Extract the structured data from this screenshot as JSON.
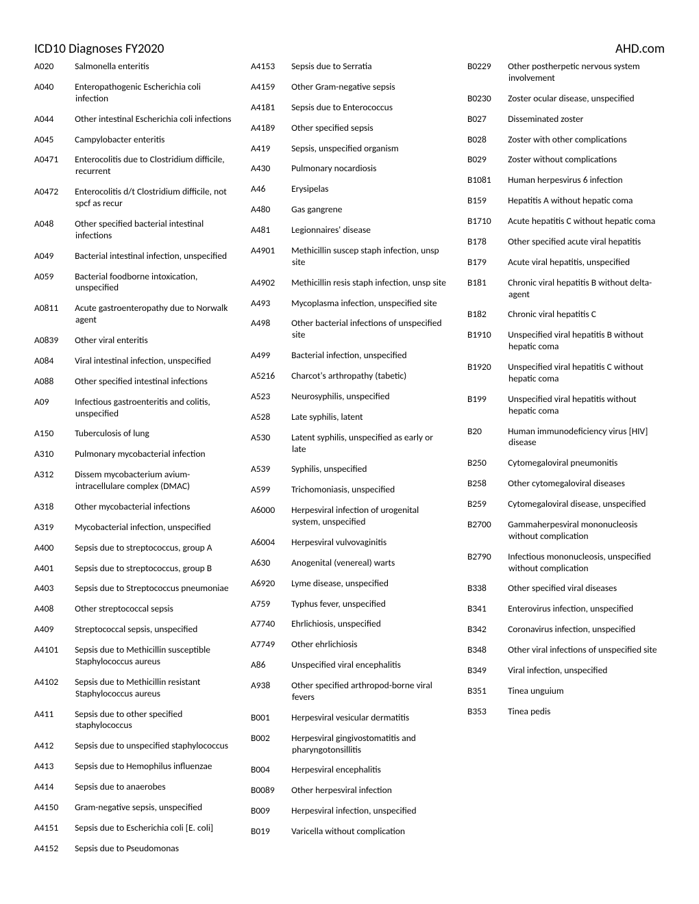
{
  "header": {
    "title": "ICD10 Diagnoses FY2020",
    "brand": "AHD.com"
  },
  "entries": [
    {
      "code": "A020",
      "desc": "Salmonella enteritis"
    },
    {
      "code": "A040",
      "desc": "Enteropathogenic Escherichia coli infection"
    },
    {
      "code": "A044",
      "desc": "Other intestinal Escherichia coli infections"
    },
    {
      "code": "A045",
      "desc": "Campylobacter enteritis"
    },
    {
      "code": "A0471",
      "desc": "Enterocolitis due to Clostridium difficile, recurrent"
    },
    {
      "code": "A0472",
      "desc": "Enterocolitis d/t Clostridium difficile, not spcf as recur"
    },
    {
      "code": "A048",
      "desc": "Other specified bacterial intestinal infections"
    },
    {
      "code": "A049",
      "desc": "Bacterial intestinal infection, unspecified"
    },
    {
      "code": "A059",
      "desc": "Bacterial foodborne intoxication, unspecified"
    },
    {
      "code": "A0811",
      "desc": "Acute gastroenteropathy due to Norwalk agent"
    },
    {
      "code": "A0839",
      "desc": "Other viral enteritis"
    },
    {
      "code": "A084",
      "desc": "Viral intestinal infection, unspecified"
    },
    {
      "code": "A088",
      "desc": "Other specified intestinal infections"
    },
    {
      "code": "A09",
      "desc": "Infectious gastroenteritis and colitis, unspecified"
    },
    {
      "code": "A150",
      "desc": "Tuberculosis of lung"
    },
    {
      "code": "A310",
      "desc": "Pulmonary mycobacterial infection"
    },
    {
      "code": "A312",
      "desc": "Dissem mycobacterium avium-intracellulare complex (DMAC)"
    },
    {
      "code": "A318",
      "desc": "Other mycobacterial infections"
    },
    {
      "code": "A319",
      "desc": "Mycobacterial infection, unspecified"
    },
    {
      "code": "A400",
      "desc": "Sepsis due to streptococcus, group A"
    },
    {
      "code": "A401",
      "desc": "Sepsis due to streptococcus, group B"
    },
    {
      "code": "A403",
      "desc": "Sepsis due to Streptococcus pneumoniae"
    },
    {
      "code": "A408",
      "desc": "Other streptococcal sepsis"
    },
    {
      "code": "A409",
      "desc": "Streptococcal sepsis, unspecified"
    },
    {
      "code": "A4101",
      "desc": "Sepsis due to Methicillin susceptible Staphylococcus aureus"
    },
    {
      "code": "A4102",
      "desc": "Sepsis due to Methicillin resistant Staphylococcus aureus"
    },
    {
      "code": "A411",
      "desc": "Sepsis due to other specified staphylococcus"
    },
    {
      "code": "A412",
      "desc": "Sepsis due to unspecified staphylococcus"
    },
    {
      "code": "A413",
      "desc": "Sepsis due to Hemophilus influenzae"
    },
    {
      "code": "A414",
      "desc": "Sepsis due to anaerobes"
    },
    {
      "code": "A4150",
      "desc": "Gram-negative sepsis, unspecified"
    },
    {
      "code": "A4151",
      "desc": "Sepsis due to Escherichia coli [E. coli]"
    },
    {
      "code": "A4152",
      "desc": "Sepsis due to Pseudomonas"
    },
    {
      "code": "A4153",
      "desc": "Sepsis due to Serratia"
    },
    {
      "code": "A4159",
      "desc": "Other Gram-negative sepsis"
    },
    {
      "code": "A4181",
      "desc": "Sepsis due to Enterococcus"
    },
    {
      "code": "A4189",
      "desc": "Other specified sepsis"
    },
    {
      "code": "A419",
      "desc": "Sepsis, unspecified organism"
    },
    {
      "code": "A430",
      "desc": "Pulmonary nocardiosis"
    },
    {
      "code": "A46",
      "desc": "Erysipelas"
    },
    {
      "code": "A480",
      "desc": "Gas gangrene"
    },
    {
      "code": "A481",
      "desc": "Legionnaires' disease"
    },
    {
      "code": "A4901",
      "desc": "Methicillin suscep staph infection, unsp site"
    },
    {
      "code": "A4902",
      "desc": "Methicillin resis staph infection, unsp site"
    },
    {
      "code": "A493",
      "desc": "Mycoplasma infection, unspecified site"
    },
    {
      "code": "A498",
      "desc": "Other bacterial infections of unspecified site"
    },
    {
      "code": "A499",
      "desc": "Bacterial infection, unspecified"
    },
    {
      "code": "A5216",
      "desc": "Charcot's arthropathy (tabetic)"
    },
    {
      "code": "A523",
      "desc": "Neurosyphilis, unspecified"
    },
    {
      "code": "A528",
      "desc": "Late syphilis, latent"
    },
    {
      "code": "A530",
      "desc": "Latent syphilis, unspecified as early or late"
    },
    {
      "code": "A539",
      "desc": "Syphilis, unspecified"
    },
    {
      "code": "A599",
      "desc": "Trichomoniasis, unspecified"
    },
    {
      "code": "A6000",
      "desc": "Herpesviral infection of urogenital system, unspecified"
    },
    {
      "code": "A6004",
      "desc": "Herpesviral vulvovaginitis"
    },
    {
      "code": "A630",
      "desc": "Anogenital (venereal) warts"
    },
    {
      "code": "A6920",
      "desc": "Lyme disease, unspecified"
    },
    {
      "code": "A759",
      "desc": "Typhus fever, unspecified"
    },
    {
      "code": "A7740",
      "desc": "Ehrlichiosis, unspecified"
    },
    {
      "code": "A7749",
      "desc": "Other ehrlichiosis"
    },
    {
      "code": "A86",
      "desc": "Unspecified viral encephalitis"
    },
    {
      "code": "A938",
      "desc": "Other specified arthropod-borne viral fevers"
    },
    {
      "code": "B001",
      "desc": "Herpesviral vesicular dermatitis"
    },
    {
      "code": "B002",
      "desc": "Herpesviral gingivostomatitis and pharyngotonsillitis"
    },
    {
      "code": "B004",
      "desc": "Herpesviral encephalitis"
    },
    {
      "code": "B0089",
      "desc": "Other herpesviral infection"
    },
    {
      "code": "B009",
      "desc": "Herpesviral infection, unspecified"
    },
    {
      "code": "B019",
      "desc": "Varicella without complication"
    },
    {
      "code": "B0229",
      "desc": "Other postherpetic nervous system involvement"
    },
    {
      "code": "B0230",
      "desc": "Zoster ocular disease, unspecified"
    },
    {
      "code": "B027",
      "desc": "Disseminated zoster"
    },
    {
      "code": "B028",
      "desc": "Zoster with other complications"
    },
    {
      "code": "B029",
      "desc": "Zoster without complications"
    },
    {
      "code": "B1081",
      "desc": "Human herpesvirus 6 infection"
    },
    {
      "code": "B159",
      "desc": "Hepatitis A without hepatic coma"
    },
    {
      "code": "B1710",
      "desc": "Acute hepatitis C without hepatic coma"
    },
    {
      "code": "B178",
      "desc": "Other specified acute viral hepatitis"
    },
    {
      "code": "B179",
      "desc": "Acute viral hepatitis, unspecified"
    },
    {
      "code": "B181",
      "desc": "Chronic viral hepatitis B without delta-agent"
    },
    {
      "code": "B182",
      "desc": "Chronic viral hepatitis C"
    },
    {
      "code": "B1910",
      "desc": "Unspecified viral hepatitis B without hepatic coma"
    },
    {
      "code": "B1920",
      "desc": "Unspecified viral hepatitis C without hepatic coma"
    },
    {
      "code": "B199",
      "desc": "Unspecified viral hepatitis without hepatic coma"
    },
    {
      "code": "B20",
      "desc": "Human immunodeficiency virus [HIV] disease"
    },
    {
      "code": "B250",
      "desc": "Cytomegaloviral pneumonitis"
    },
    {
      "code": "B258",
      "desc": "Other cytomegaloviral diseases"
    },
    {
      "code": "B259",
      "desc": "Cytomegaloviral disease, unspecified"
    },
    {
      "code": "B2700",
      "desc": "Gammaherpesviral mononucleosis without complication"
    },
    {
      "code": "B2790",
      "desc": "Infectious mononucleosis, unspecified without complication"
    },
    {
      "code": "B338",
      "desc": "Other specified viral diseases"
    },
    {
      "code": "B341",
      "desc": "Enterovirus infection, unspecified"
    },
    {
      "code": "B342",
      "desc": "Coronavirus infection, unspecified"
    },
    {
      "code": "B348",
      "desc": "Other viral infections of unspecified site"
    },
    {
      "code": "B349",
      "desc": "Viral infection, unspecified"
    },
    {
      "code": "B351",
      "desc": "Tinea unguium"
    },
    {
      "code": "B353",
      "desc": "Tinea pedis"
    }
  ]
}
